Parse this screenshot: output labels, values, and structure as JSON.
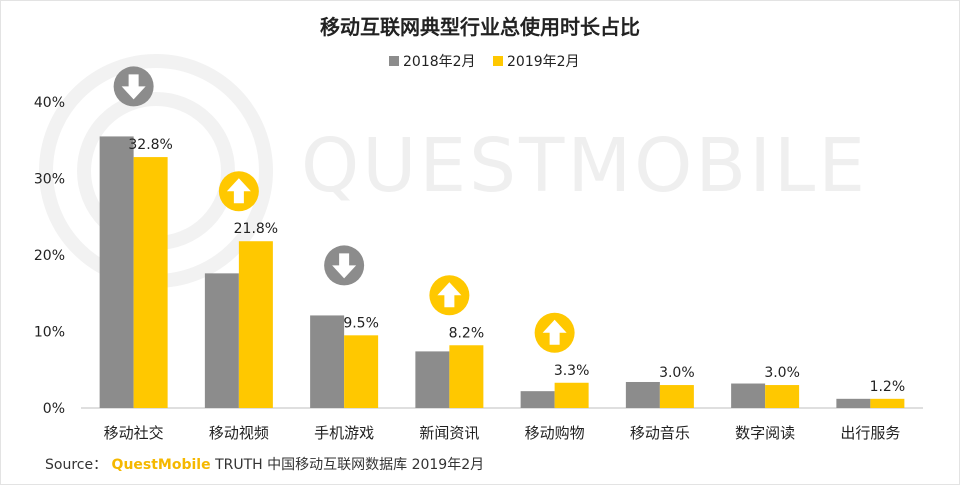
{
  "chart_data": {
    "type": "bar",
    "title": "移动互联网典型行业总使用时长占比",
    "categories": [
      "移动社交",
      "移动视频",
      "手机游戏",
      "新闻资讯",
      "移动购物",
      "移动音乐",
      "数字阅读",
      "出行服务"
    ],
    "series": [
      {
        "name": "2018年2月",
        "values": [
          35.5,
          17.6,
          12.1,
          7.4,
          2.2,
          3.4,
          3.2,
          1.2
        ]
      },
      {
        "name": "2019年2月",
        "values": [
          32.8,
          21.8,
          9.5,
          8.2,
          3.3,
          3.0,
          3.0,
          1.2
        ]
      }
    ],
    "data_labels": [
      "32.8%",
      "21.8%",
      "9.5%",
      "8.2%",
      "3.3%",
      "3.0%",
      "3.0%",
      "1.2%"
    ],
    "y_ticks": [
      "0%",
      "10%",
      "20%",
      "30%",
      "40%"
    ],
    "ylim": [
      0,
      40
    ],
    "grid": false,
    "legend_position": "top-center",
    "trend_indicators": [
      {
        "category": "移动社交",
        "direction": "down"
      },
      {
        "category": "移动视频",
        "direction": "up"
      },
      {
        "category": "手机游戏",
        "direction": "down"
      },
      {
        "category": "新闻资讯",
        "direction": "up"
      },
      {
        "category": "移动购物",
        "direction": "up"
      }
    ],
    "colors": {
      "series_2018": "#8c8c8c",
      "series_2019": "#ffc800",
      "arrow_down_bg": "#8c8c8c",
      "arrow_up_bg": "#ffc800"
    }
  },
  "watermark": "QUESTMOBILE",
  "source": {
    "prefix": "Source：",
    "brand": "QuestMobile",
    "rest": "TRUTH 中国移动互联网数据库 2019年2月"
  }
}
